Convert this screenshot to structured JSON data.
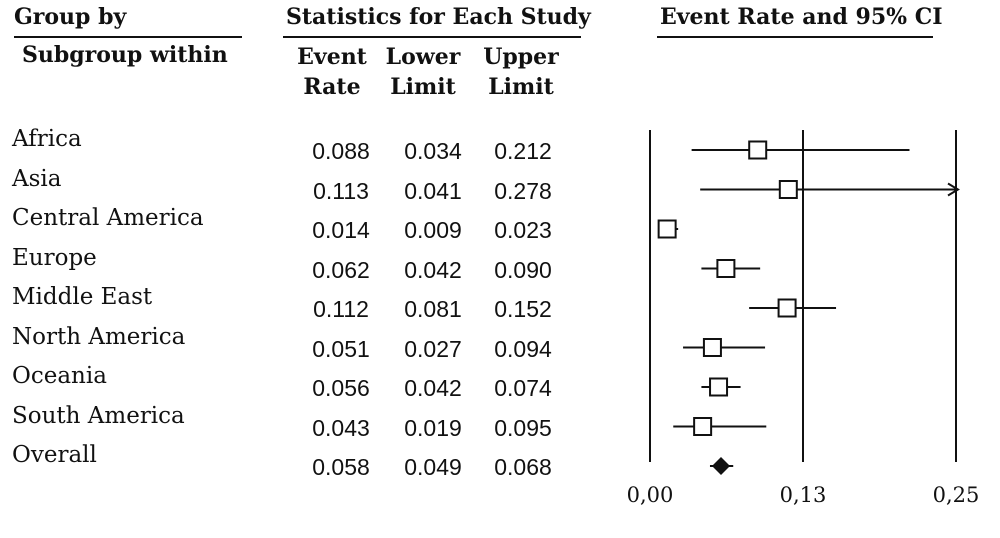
{
  "headers": {
    "group_by": "Group by",
    "subgroup_within": "Subgroup within",
    "stats_title": "Statistics for Each Study",
    "plot_title": "Event Rate and 95% CI",
    "columns": [
      {
        "line1": "Event",
        "line2": "Rate"
      },
      {
        "line1": "Lower",
        "line2": "Limit"
      },
      {
        "line1": "Upper",
        "line2": "Limit"
      }
    ]
  },
  "rows": [
    {
      "label": "Africa",
      "event_rate": "0.088",
      "lower": "0.034",
      "upper": "0.212"
    },
    {
      "label": "Asia",
      "event_rate": "0.113",
      "lower": "0.041",
      "upper": "0.278"
    },
    {
      "label": "Central America",
      "event_rate": "0.014",
      "lower": "0.009",
      "upper": "0.023"
    },
    {
      "label": "Europe",
      "event_rate": "0.062",
      "lower": "0.042",
      "upper": "0.090"
    },
    {
      "label": "Middle East",
      "event_rate": "0.112",
      "lower": "0.081",
      "upper": "0.152"
    },
    {
      "label": "North America",
      "event_rate": "0.051",
      "lower": "0.027",
      "upper": "0.094"
    },
    {
      "label": "Oceania",
      "event_rate": "0.056",
      "lower": "0.042",
      "upper": "0.074"
    },
    {
      "label": "South America",
      "event_rate": "0.043",
      "lower": "0.019",
      "upper": "0.095"
    },
    {
      "label": "Overall",
      "event_rate": "0.058",
      "lower": "0.049",
      "upper": "0.068"
    }
  ],
  "chart_data": {
    "type": "scatter",
    "subtype": "forest-plot",
    "title": "Event Rate and 95% CI",
    "xlim": [
      0.0,
      0.25
    ],
    "ticks": [
      0.0,
      0.125,
      0.25
    ],
    "tick_labels": [
      "0,00",
      "0,13",
      "0,25"
    ],
    "reference_lines": [
      0.0,
      0.125,
      0.25
    ],
    "grid": false,
    "points": [
      {
        "label": "Africa",
        "estimate": 0.088,
        "lower": 0.034,
        "upper": 0.212,
        "marker": "square"
      },
      {
        "label": "Asia",
        "estimate": 0.113,
        "lower": 0.041,
        "upper": 0.278,
        "marker": "square",
        "upper_truncated": true
      },
      {
        "label": "Central America",
        "estimate": 0.014,
        "lower": 0.009,
        "upper": 0.023,
        "marker": "square"
      },
      {
        "label": "Europe",
        "estimate": 0.062,
        "lower": 0.042,
        "upper": 0.09,
        "marker": "square"
      },
      {
        "label": "Middle East",
        "estimate": 0.112,
        "lower": 0.081,
        "upper": 0.152,
        "marker": "square"
      },
      {
        "label": "North America",
        "estimate": 0.051,
        "lower": 0.027,
        "upper": 0.094,
        "marker": "square"
      },
      {
        "label": "Oceania",
        "estimate": 0.056,
        "lower": 0.042,
        "upper": 0.074,
        "marker": "square"
      },
      {
        "label": "South America",
        "estimate": 0.043,
        "lower": 0.019,
        "upper": 0.095,
        "marker": "square"
      },
      {
        "label": "Overall",
        "estimate": 0.058,
        "lower": 0.049,
        "upper": 0.068,
        "marker": "diamond"
      }
    ]
  }
}
